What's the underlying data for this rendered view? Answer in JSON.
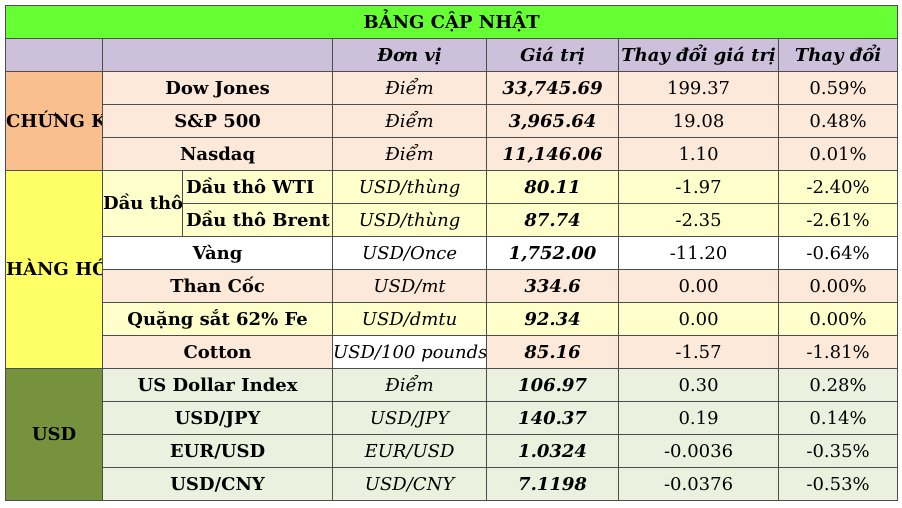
{
  "title": "BẢNG CẬP NHẬT",
  "headers": {
    "unit": "Đơn vị",
    "value": "Giá trị",
    "change_value": "Thay đổi giá trị",
    "change_pct": "Thay đổi"
  },
  "groups": {
    "stocks": "CHỨNG KHOÁN",
    "commodities": "HÀNG HÓA",
    "usd": "USD",
    "oil": "Dầu thô"
  },
  "rows": [
    {
      "name": "Dow Jones",
      "unit": "Điểm",
      "value": "33,745.69",
      "change": "199.37",
      "pct": "0.59%"
    },
    {
      "name": "S&P 500",
      "unit": "Điểm",
      "value": "3,965.64",
      "change": "19.08",
      "pct": "0.48%"
    },
    {
      "name": "Nasdaq",
      "unit": "Điểm",
      "value": "11,146.06",
      "change": "1.10",
      "pct": "0.01%"
    },
    {
      "name": "Dầu thô WTI",
      "unit": "USD/thùng",
      "value": "80.11",
      "change": "-1.97",
      "pct": "-2.40%"
    },
    {
      "name": "Dầu thô Brent",
      "unit": "USD/thùng",
      "value": "87.74",
      "change": "-2.35",
      "pct": "-2.61%"
    },
    {
      "name": "Vàng",
      "unit": "USD/Once",
      "value": "1,752.00",
      "change": "-11.20",
      "pct": "-0.64%"
    },
    {
      "name": "Than Cốc",
      "unit": "USD/mt",
      "value": "334.6",
      "change": "0.00",
      "pct": "0.00%"
    },
    {
      "name": "Quặng sắt 62% Fe",
      "unit": "USD/dmtu",
      "value": "92.34",
      "change": "0.00",
      "pct": "0.00%"
    },
    {
      "name": "Cotton",
      "unit": "USD/100 pounds",
      "value": "85.16",
      "change": "-1.57",
      "pct": "-1.81%"
    },
    {
      "name": "US Dollar Index",
      "unit": "Điểm",
      "value": "106.97",
      "change": "0.30",
      "pct": "0.28%"
    },
    {
      "name": "USD/JPY",
      "unit": "USD/JPY",
      "value": "140.37",
      "change": "0.19",
      "pct": "0.14%"
    },
    {
      "name": "EUR/USD",
      "unit": "EUR/USD",
      "value": "1.0324",
      "change": "-0.0036",
      "pct": "-0.35%"
    },
    {
      "name": "USD/CNY",
      "unit": "USD/CNY",
      "value": "7.1198",
      "change": "-0.0376",
      "pct": "-0.53%"
    }
  ],
  "colors": {
    "title_bg": "#66ff33",
    "header_bg": "#ccc0da",
    "stocks_bg": "#fabf8f",
    "commodities_bg": "#ffff66",
    "usd_bg": "#76923c",
    "positive": "#1c9a3e",
    "negative": "#e00000"
  }
}
